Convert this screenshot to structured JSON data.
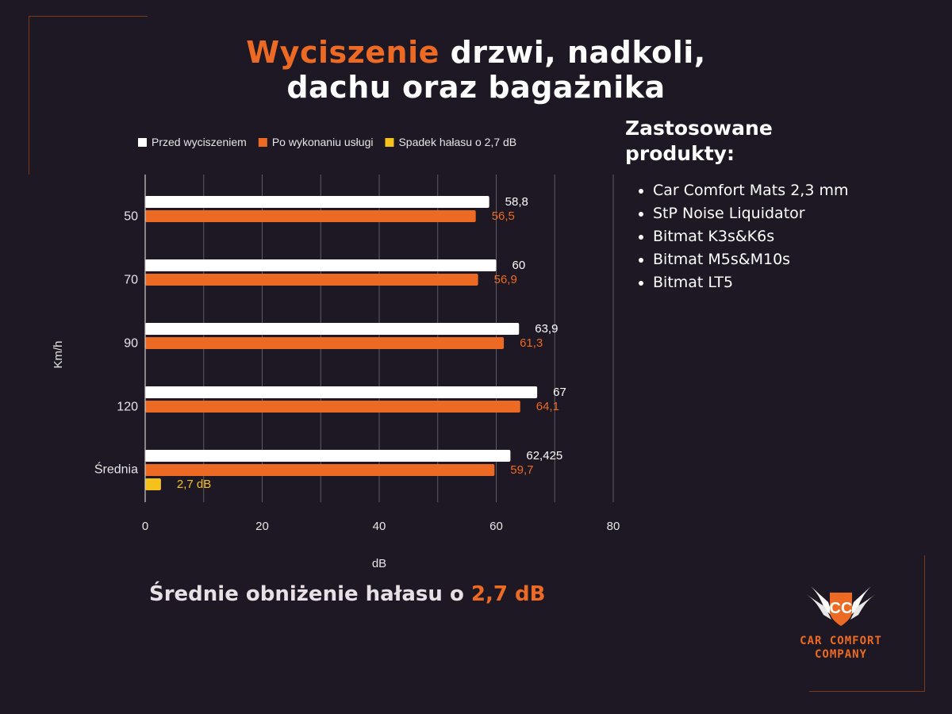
{
  "title": {
    "accent": "Wyciszenie",
    "rest": "drzwi, nadkoli,",
    "line2": "dachu oraz bagażnika"
  },
  "colors": {
    "background": "#1d1823",
    "accent": "#ec6a24",
    "white_bar": "#ffffff",
    "yellow": "#f5c21b"
  },
  "chart_data": {
    "type": "bar",
    "orientation": "horizontal",
    "categories": [
      "50",
      "70",
      "90",
      "120",
      "Średnia"
    ],
    "series": [
      {
        "name": "Przed wyciszeniem",
        "color": "#ffffff",
        "values": [
          58.8,
          60,
          63.9,
          67,
          62.425
        ],
        "labels": [
          "58,8",
          "60",
          "63,9",
          "67",
          "62,425"
        ]
      },
      {
        "name": "Po wykonaniu usługi",
        "color": "#ec6a24",
        "values": [
          56.5,
          56.9,
          61.3,
          64.1,
          59.7
        ],
        "labels": [
          "56,5",
          "56,9",
          "61,3",
          "64,1",
          "59,7"
        ]
      },
      {
        "name": "Spadek hałasu o  2,7 dB",
        "color": "#f5c21b",
        "values": [
          null,
          null,
          null,
          null,
          2.7
        ],
        "labels": [
          "",
          "",
          "",
          "",
          "2,7 dB"
        ]
      }
    ],
    "xlabel": "dB",
    "ylabel": "Km/h",
    "xlim": [
      0,
      80
    ],
    "xticks": [
      "0",
      "20",
      "40",
      "60",
      "80"
    ],
    "grid": true,
    "legend_position": "top"
  },
  "products": {
    "heading": "Zastosowane produkty:",
    "items": [
      "Car Comfort Mats 2,3 mm",
      "StP Noise Liquidator",
      "Bitmat K3s&K6s",
      "Bitmat M5s&M10s",
      "Bitmat LT5"
    ]
  },
  "summary": {
    "text": "Średnie obniżenie hałasu o",
    "value": "2,7 dB"
  },
  "logo": {
    "monogram": "CC",
    "line1": "CAR COMFORT",
    "line2": "COMPANY"
  }
}
